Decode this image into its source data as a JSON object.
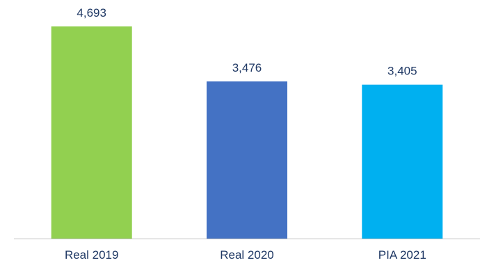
{
  "chart_data": {
    "type": "bar",
    "categories": [
      "Real 2019",
      "Real 2020",
      "PIA 2021"
    ],
    "values": [
      4693,
      3476,
      3405
    ],
    "value_labels": [
      "4,693",
      "3,476",
      "3,405"
    ],
    "colors": [
      "#92d050",
      "#4472c4",
      "#00b0f0"
    ],
    "label_color": "#1f3864",
    "axis_color": "#bfbfbf",
    "ylim": [
      0,
      4693
    ],
    "grid": false,
    "legend": "none"
  }
}
